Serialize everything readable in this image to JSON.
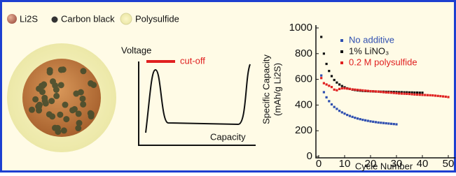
{
  "legend_items": [
    "Li2S",
    "Carbon black",
    "Polysulfide"
  ],
  "sketch": {
    "y_label": "Voltage",
    "cutoff_label": "cut-off",
    "x_label": "Capacity"
  },
  "chart_data": {
    "type": "scatter",
    "y_label": [
      "Specific Capacity",
      "(mAh/g Li2S)"
    ],
    "x_label": "Cycle Number",
    "x": [
      1,
      2,
      3,
      4,
      5,
      6,
      7,
      8,
      9,
      10,
      11,
      12,
      13,
      14,
      15,
      16,
      17,
      18,
      19,
      20,
      21,
      22,
      23,
      24,
      25,
      26,
      27,
      28,
      29,
      30,
      31,
      32,
      33,
      34,
      35,
      36,
      37,
      38,
      39,
      40,
      41,
      42,
      43,
      44,
      45,
      46,
      47,
      48,
      49,
      50
    ],
    "series": [
      {
        "name": "No additive",
        "color": "#2f4fb0",
        "values": [
          630,
          500,
          460,
          430,
          405,
          385,
          370,
          355,
          343,
          333,
          323,
          315,
          308,
          301,
          295,
          290,
          285,
          281,
          277,
          273,
          270,
          267,
          264,
          262,
          260,
          258,
          256,
          254,
          252,
          250,
          null,
          null,
          null,
          null,
          null,
          null,
          null,
          null,
          null,
          null,
          null,
          null,
          null,
          null,
          null,
          null,
          null,
          null,
          null,
          null
        ]
      },
      {
        "name": "1% LiNO₃",
        "color": "#111111",
        "values": [
          930,
          800,
          720,
          665,
          625,
          595,
          575,
          560,
          548,
          538,
          530,
          525,
          520,
          517,
          514,
          512,
          510,
          509,
          508,
          507,
          506,
          505,
          505,
          504,
          504,
          503,
          503,
          502,
          502,
          501,
          500,
          500,
          499,
          499,
          498,
          498,
          497,
          497,
          496,
          496,
          null,
          null,
          null,
          null,
          null,
          null,
          null,
          null,
          null,
          null
        ]
      },
      {
        "name": "0.2 M polysulfide",
        "color": "#e02020",
        "values": [
          610,
          570,
          560,
          550,
          540,
          520,
          515,
          525,
          530,
          530,
          528,
          525,
          522,
          520,
          518,
          516,
          514,
          512,
          510,
          508,
          507,
          506,
          504,
          502,
          500,
          498,
          497,
          496,
          494,
          492,
          490,
          489,
          488,
          487,
          486,
          484,
          482,
          481,
          480,
          479,
          478,
          477,
          476,
          475,
          473,
          471,
          469,
          467,
          465,
          462
        ]
      }
    ],
    "xlim": [
      0,
      50
    ],
    "ylim": [
      0,
      1000
    ],
    "xticks": [
      0,
      10,
      20,
      30,
      40,
      50
    ],
    "yticks": [
      0,
      200,
      400,
      600,
      800,
      1000
    ]
  }
}
